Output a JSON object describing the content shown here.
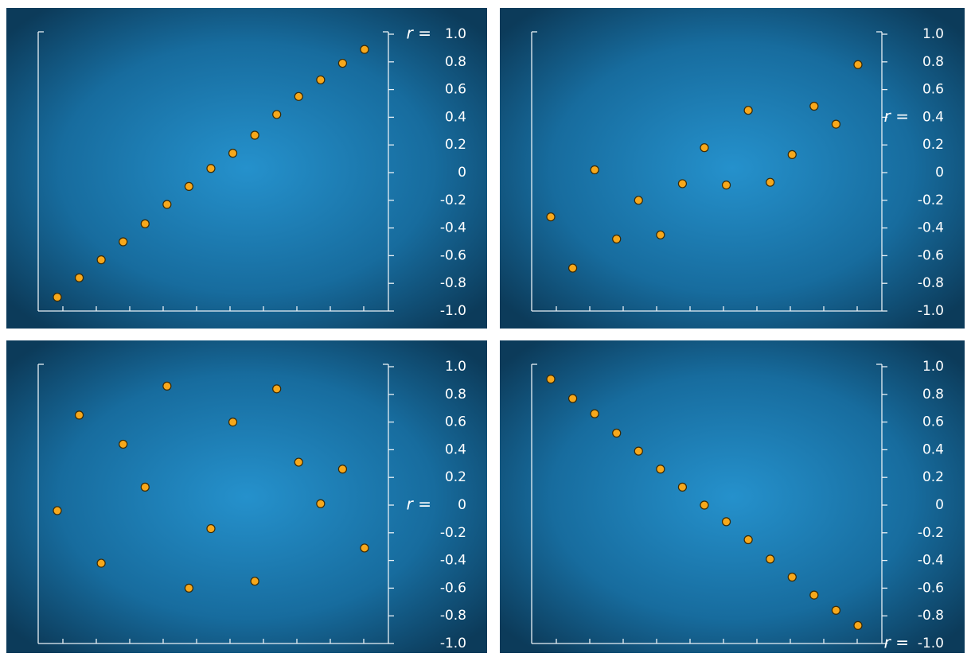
{
  "chart_data": [
    {
      "type": "scatter",
      "annotation": "r =",
      "color": "#f7a81b",
      "categories": [
        null,
        null,
        null,
        null,
        null,
        null,
        null,
        null,
        null,
        null,
        null,
        null,
        null,
        null,
        null
      ],
      "values": [
        -0.9,
        -0.76,
        -0.63,
        -0.5,
        -0.37,
        -0.23,
        -0.1,
        0.03,
        0.14,
        0.27,
        0.42,
        0.55,
        0.67,
        0.79,
        0.89
      ],
      "ylim": [
        -1,
        1
      ],
      "yticks": [
        {
          "value": 1,
          "label": "1.0"
        },
        0.8,
        0.6,
        0.4,
        0.2,
        0,
        -0.2,
        -0.4,
        -0.6,
        -0.8,
        {
          "value": -1,
          "label": "-1.0"
        }
      ]
    },
    {
      "type": "scatter",
      "annotation": "r =",
      "color": "#f7a81b",
      "categories": [
        null,
        null,
        null,
        null,
        null,
        null,
        null,
        null,
        null,
        null,
        null,
        null,
        null,
        null,
        null
      ],
      "values": [
        -0.32,
        -0.69,
        0.02,
        -0.48,
        -0.2,
        -0.45,
        -0.08,
        0.18,
        -0.09,
        0.45,
        -0.07,
        0.13,
        0.48,
        0.35,
        0.78
      ],
      "ylim": [
        -1,
        1
      ],
      "yticks": [
        {
          "value": 1,
          "label": "1.0"
        },
        0.8,
        0.6,
        0.4,
        0.2,
        0,
        -0.2,
        -0.4,
        -0.6,
        -0.8,
        {
          "value": -1,
          "label": "-1.0"
        }
      ]
    },
    {
      "type": "scatter",
      "annotation": "r =",
      "color": "#f7a81b",
      "categories": [
        null,
        null,
        null,
        null,
        null,
        null,
        null,
        null,
        null,
        null,
        null,
        null,
        null,
        null,
        null
      ],
      "values": [
        -0.04,
        0.65,
        -0.42,
        0.44,
        0.13,
        0.86,
        -0.6,
        -0.17,
        0.6,
        -0.55,
        0.84,
        0.31,
        0.01,
        0.26,
        -0.31
      ],
      "ylim": [
        -1,
        1
      ],
      "yticks": [
        {
          "value": 1,
          "label": "1.0"
        },
        0.8,
        0.6,
        0.4,
        0.2,
        0,
        -0.2,
        -0.4,
        -0.6,
        -0.8,
        {
          "value": -1,
          "label": "-1.0"
        }
      ]
    },
    {
      "type": "scatter",
      "annotation": "r =",
      "color": "#f7a81b",
      "categories": [
        null,
        null,
        null,
        null,
        null,
        null,
        null,
        null,
        null,
        null,
        null,
        null,
        null,
        null,
        null
      ],
      "values": [
        0.91,
        0.77,
        0.66,
        0.52,
        0.39,
        0.26,
        0.13,
        0.0,
        -0.12,
        -0.25,
        -0.39,
        -0.52,
        -0.65,
        -0.76,
        -0.87
      ],
      "ylim": [
        -1,
        1
      ],
      "yticks": [
        {
          "value": 1,
          "label": "1.0"
        },
        0.8,
        0.6,
        0.4,
        0.2,
        0,
        -0.2,
        -0.4,
        -0.6,
        -0.8,
        {
          "value": -1,
          "label": "-1.0"
        }
      ]
    }
  ]
}
